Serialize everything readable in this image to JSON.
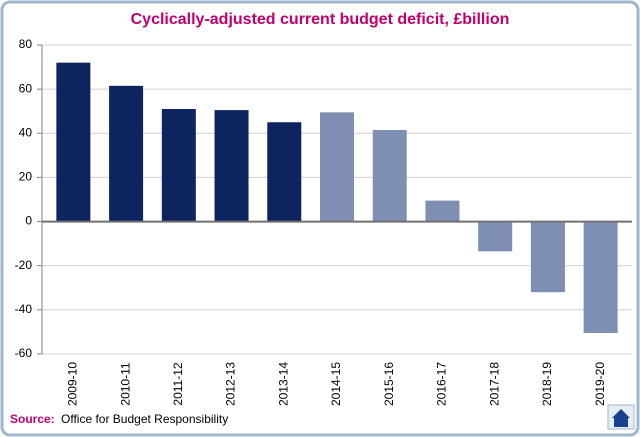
{
  "chart_data": {
    "type": "bar",
    "title": "Cyclically-adjusted current budget deficit, £billion",
    "categories": [
      "2009-10",
      "2010-11",
      "2011-12",
      "2012-13",
      "2013-14",
      "2014-15",
      "2015-16",
      "2016-17",
      "2017-18",
      "2018-19",
      "2019-20"
    ],
    "values": [
      72,
      61.5,
      51,
      50.5,
      45,
      49.5,
      41.5,
      9.5,
      -13.5,
      -32,
      -50.5
    ],
    "colors": [
      "#0d2461",
      "#0d2461",
      "#0d2461",
      "#0d2461",
      "#0d2461",
      "#7f8fb3",
      "#7f8fb3",
      "#7f8fb3",
      "#7f8fb3",
      "#7f8fb3",
      "#7f8fb3"
    ],
    "ylim": [
      -60,
      80
    ],
    "yticks": [
      -60,
      -40,
      -20,
      0,
      20,
      40,
      60,
      80
    ],
    "grid": true,
    "source_label": "Source:",
    "source": "Office for Budget Responsibility"
  }
}
